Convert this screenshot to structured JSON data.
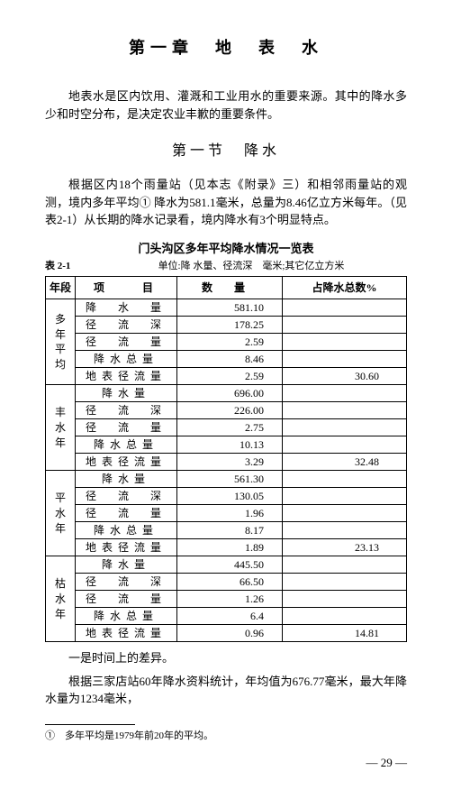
{
  "chapter_title": "第一章　地　表　水",
  "intro_para": "地表水是区内饮用、灌溉和工业用水的重要来源。其中的降水多少和时空分布，是决定农业丰歉的重要条件。",
  "section_title": "第一节　降水",
  "section_para": "根据区内18个雨量站（见本志《附录》三）和相邻雨量站的观测，境内多年平均① 降水为581.1毫米，总量为8.46亿立方米每年。（见表2-1）从长期的降水记录看，境内降水有3个明显特点。",
  "table": {
    "title": "门头沟区多年平均降水情况一览表",
    "label": "表 2-1",
    "unit": "单位:降 水量、径流深　毫米;其它亿立方米",
    "header": {
      "c0": "年段",
      "c1": "项　　目",
      "c2": "数　　量",
      "c3": "占降水总数%"
    },
    "groups": [
      {
        "name": "多年平均",
        "vlabel": "多\n年\n平\n均",
        "rows": [
          {
            "item": "降　水　量",
            "val": "581.10",
            "pct": ""
          },
          {
            "item": "径　流　深",
            "val": "178.25",
            "pct": ""
          },
          {
            "item": "径　流　量",
            "val": "2.59",
            "pct": ""
          },
          {
            "item": "降水总量",
            "val": "8.46",
            "pct": ""
          },
          {
            "item": "地表径流量",
            "val": "2.59",
            "pct": "30.60"
          }
        ]
      },
      {
        "name": "丰水年",
        "vlabel": "丰\n水\n年",
        "rows": [
          {
            "item": "降水量",
            "val": "696.00",
            "pct": ""
          },
          {
            "item": "径　流　深",
            "val": "226.00",
            "pct": ""
          },
          {
            "item": "径　流　量",
            "val": "2.75",
            "pct": ""
          },
          {
            "item": "降水总量",
            "val": "10.13",
            "pct": ""
          },
          {
            "item": "地表径流量",
            "val": "3.29",
            "pct": "32.48"
          }
        ]
      },
      {
        "name": "平水年",
        "vlabel": "平\n水\n年",
        "rows": [
          {
            "item": "降水量",
            "val": "561.30",
            "pct": ""
          },
          {
            "item": "径　流　深",
            "val": "130.05",
            "pct": ""
          },
          {
            "item": "径　流　量",
            "val": "1.96",
            "pct": ""
          },
          {
            "item": "降水总量",
            "val": "8.17",
            "pct": ""
          },
          {
            "item": "地表径流量",
            "val": "1.89",
            "pct": "23.13"
          }
        ]
      },
      {
        "name": "枯水年",
        "vlabel": "枯\n水\n年",
        "rows": [
          {
            "item": "降水量",
            "val": "445.50",
            "pct": ""
          },
          {
            "item": "径　流　深",
            "val": "66.50",
            "pct": ""
          },
          {
            "item": "径　流　量",
            "val": "1.26",
            "pct": ""
          },
          {
            "item": "降水总量",
            "val": "6.4",
            "pct": ""
          },
          {
            "item": "地表径流量",
            "val": "0.96",
            "pct": "14.81"
          }
        ]
      }
    ]
  },
  "after_para1": "一是时间上的差异。",
  "after_para2": "根据三家店站60年降水资料统计，年均值为676.77毫米，最大年降水量为1234毫米，",
  "footnote": "①　多年平均是1979年前20年的平均。",
  "page_num": "—  29  —"
}
